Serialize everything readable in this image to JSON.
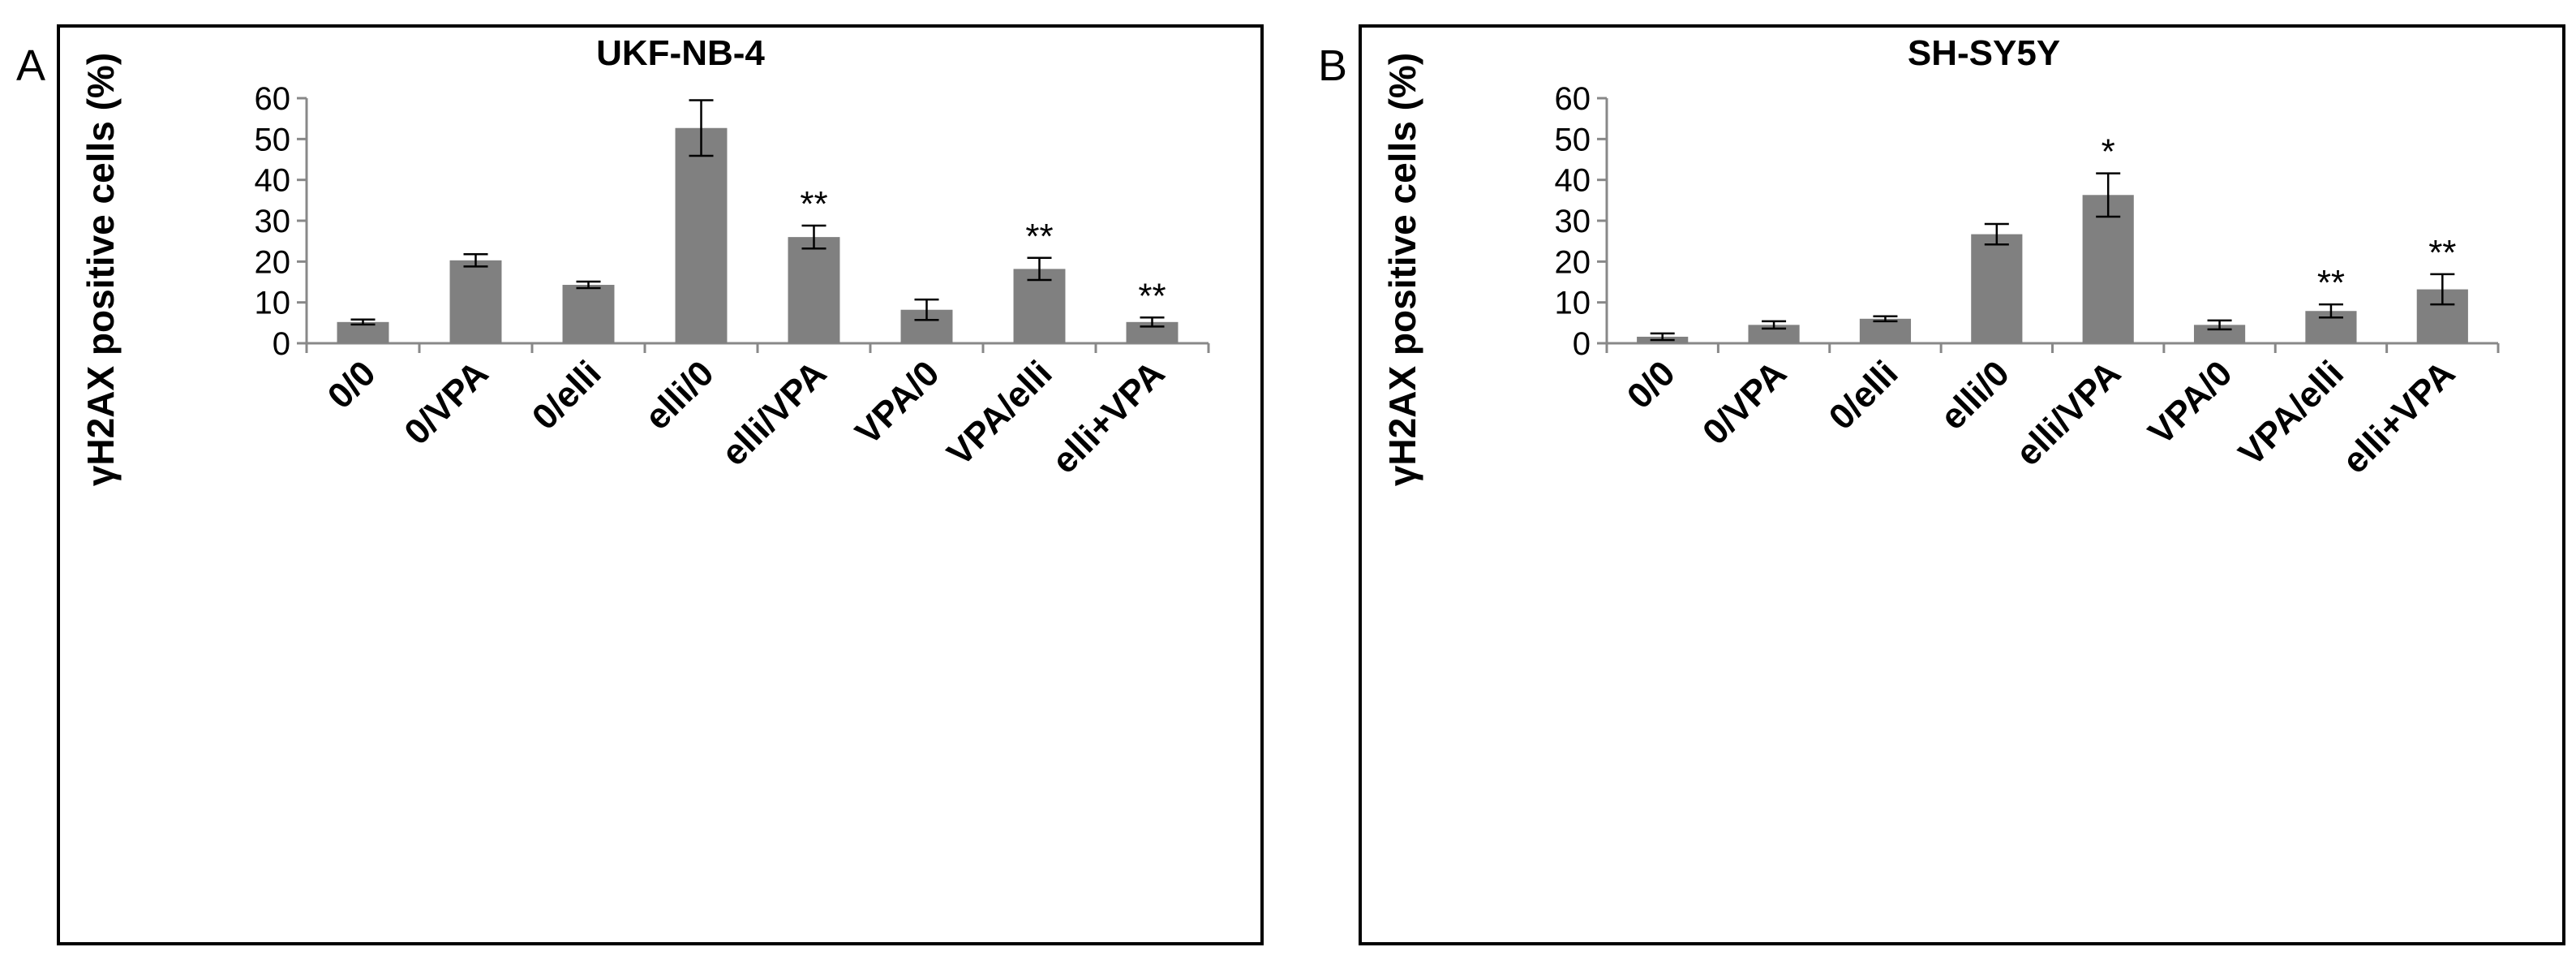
{
  "chart_data": [
    {
      "panel": "A",
      "type": "bar",
      "title": "UKF-NB-4",
      "ylabel": "γH2AX positive cells (%)",
      "xlabel": "",
      "ylim": [
        0,
        60
      ],
      "yticks": [
        0,
        10,
        20,
        30,
        40,
        50,
        60
      ],
      "categories": [
        "0/0",
        "0/VPA",
        "0/elli",
        "elli/0",
        "elli/VPA",
        "VPA/0",
        "VPA/elli",
        "elli+VPA"
      ],
      "values": [
        5.2,
        20.3,
        14.3,
        52.7,
        26.0,
        8.2,
        18.2,
        5.2
      ],
      "errors": [
        0.6,
        1.5,
        0.8,
        6.8,
        2.8,
        2.5,
        2.7,
        1.1
      ],
      "annotations": [
        "",
        "",
        "",
        "",
        "**",
        "",
        "**",
        "**"
      ],
      "bar_color": "#808080"
    },
    {
      "panel": "B",
      "type": "bar",
      "title": "SH-SY5Y",
      "ylabel": "γH2AX positive cells (%)",
      "xlabel": "",
      "ylim": [
        0,
        60
      ],
      "yticks": [
        0,
        10,
        20,
        30,
        40,
        50,
        60
      ],
      "categories": [
        "0/0",
        "0/VPA",
        "0/elli",
        "elli/0",
        "elli/VPA",
        "VPA/0",
        "VPA/elli",
        "elli+VPA"
      ],
      "values": [
        1.6,
        4.5,
        6.0,
        26.7,
        36.3,
        4.5,
        7.9,
        13.2
      ],
      "errors": [
        0.8,
        0.9,
        0.6,
        2.5,
        5.3,
        1.1,
        1.6,
        3.7
      ],
      "annotations": [
        "",
        "",
        "",
        "",
        "*",
        "",
        "**",
        "**"
      ],
      "bar_color": "#808080"
    }
  ]
}
